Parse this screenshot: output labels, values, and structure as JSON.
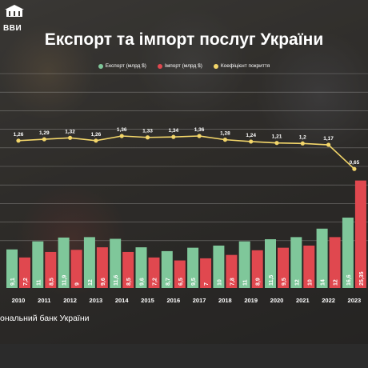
{
  "brand": {
    "logo_text": "ВВИ"
  },
  "colors": {
    "export": "#7fc79a",
    "import": "#e0484f",
    "coverage": "#f3d66a",
    "text": "#ffffff"
  },
  "chart_data": {
    "type": "bar",
    "title": "Експорт та імпорт послуг України",
    "categories": [
      "2010",
      "2011",
      "2012",
      "2013",
      "2014",
      "2015",
      "2016",
      "2017",
      "2018",
      "2019",
      "2020",
      "2021",
      "2022",
      "2023"
    ],
    "series": [
      {
        "name": "Експорт (млрд $)",
        "kind": "bar",
        "values": [
          9.1,
          11,
          11.9,
          12,
          11.6,
          9.6,
          8.7,
          9.5,
          10,
          11,
          11.5,
          12,
          14,
          16.6
        ]
      },
      {
        "name": "Імпорт (млрд $)",
        "kind": "bar",
        "values": [
          7.2,
          8.5,
          9,
          9.6,
          8.5,
          7.2,
          6.5,
          7,
          7.8,
          8.9,
          9.5,
          10,
          12,
          25.35
        ]
      },
      {
        "name": "Коефіцієнт покриття",
        "kind": "line",
        "values": [
          1.26,
          1.29,
          1.32,
          1.26,
          1.36,
          1.33,
          1.34,
          1.36,
          1.28,
          1.24,
          1.21,
          1.2,
          1.17,
          0.65
        ]
      }
    ],
    "value_labels_export": [
      "9,1",
      "11",
      "11,9",
      "12",
      "11,6",
      "9,6",
      "8,7",
      "9,5",
      "10",
      "11",
      "11,5",
      "12",
      "14",
      "16,6"
    ],
    "value_labels_import": [
      "7,2",
      "8,5",
      "9",
      "9,6",
      "8,5",
      "7,2",
      "6,5",
      "7",
      "7,8",
      "8,9",
      "9,5",
      "10",
      "12",
      "25,35"
    ],
    "value_labels_coverage": [
      "1,26",
      "1,29",
      "1,32",
      "1,26",
      "1,36",
      "1,33",
      "1,34",
      "1,36",
      "1,28",
      "1,24",
      "1,21",
      "1,2",
      "1,17",
      "0,65"
    ],
    "xlabel": "",
    "ylabel": "",
    "grid": true,
    "legend_placement": "top-center"
  },
  "source": "ональний банк України"
}
